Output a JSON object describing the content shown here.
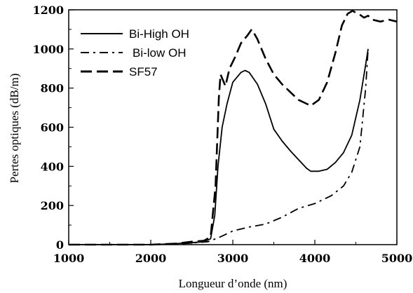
{
  "chart_data": {
    "type": "line",
    "title": "",
    "xlabel": "Longueur d’onde (nm)",
    "ylabel": "Pertes optiques (dB/m)",
    "xlim": [
      1000,
      5000
    ],
    "ylim": [
      0,
      1200
    ],
    "xticks": [
      1000,
      2000,
      3000,
      4000,
      5000
    ],
    "yticks": [
      0,
      200,
      400,
      600,
      800,
      1000,
      1200
    ],
    "grid": false,
    "legend_position": "top-left",
    "series": [
      {
        "name": "Bi-High OH",
        "style": "solid",
        "x": [
          1000,
          2000,
          2300,
          2500,
          2650,
          2730,
          2780,
          2820,
          2870,
          2930,
          3000,
          3100,
          3150,
          3200,
          3300,
          3400,
          3500,
          3600,
          3700,
          3800,
          3900,
          3950,
          4050,
          4150,
          4250,
          4350,
          4450,
          4550,
          4620,
          4650
        ],
        "y": [
          0,
          0,
          5,
          10,
          15,
          30,
          150,
          400,
          600,
          720,
          830,
          880,
          890,
          880,
          820,
          720,
          590,
          530,
          480,
          435,
          390,
          375,
          375,
          385,
          420,
          470,
          560,
          740,
          920,
          1000
        ]
      },
      {
        "name": "Bi-low OH",
        "style": "dash-dot",
        "x": [
          1000,
          2000,
          2400,
          2700,
          2850,
          3000,
          3200,
          3400,
          3600,
          3800,
          4000,
          4200,
          4350,
          4450,
          4550,
          4620,
          4650
        ],
        "y": [
          0,
          0,
          5,
          15,
          40,
          70,
          90,
          105,
          140,
          185,
          210,
          250,
          300,
          370,
          500,
          800,
          1000
        ]
      },
      {
        "name": "SF57",
        "style": "dashed",
        "x": [
          1000,
          2000,
          2300,
          2500,
          2650,
          2730,
          2790,
          2830,
          2850,
          2880,
          2910,
          2960,
          3030,
          3100,
          3180,
          3230,
          3260,
          3300,
          3400,
          3500,
          3600,
          3700,
          3800,
          3900,
          3950,
          4050,
          4150,
          4250,
          4330,
          4400,
          4460,
          4500,
          4550,
          4600,
          4650,
          4700,
          4800,
          4900,
          5000
        ],
        "y": [
          0,
          0,
          5,
          15,
          20,
          40,
          300,
          750,
          870,
          840,
          810,
          900,
          960,
          1030,
          1070,
          1100,
          1080,
          1050,
          950,
          870,
          820,
          780,
          740,
          720,
          710,
          740,
          830,
          980,
          1120,
          1180,
          1195,
          1185,
          1175,
          1160,
          1170,
          1150,
          1140,
          1150,
          1140
        ]
      }
    ]
  }
}
